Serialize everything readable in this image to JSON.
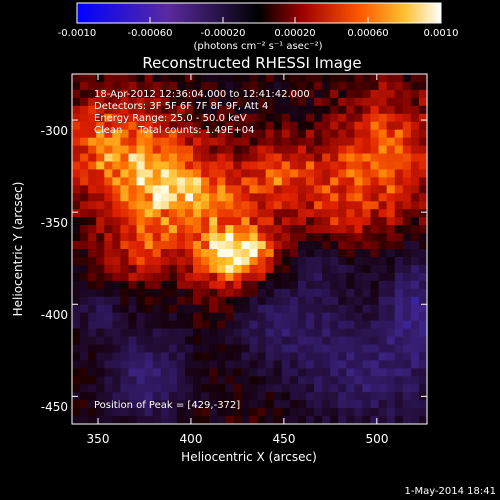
{
  "colorbar": {
    "tick_labels": [
      "-0.0010",
      "-0.00060",
      "-0.00020",
      "0.00020",
      "0.00060",
      "0.0010"
    ],
    "unit_label": "(photons cm⁻² s⁻¹ asec⁻²)",
    "range": [
      -0.001,
      0.001
    ]
  },
  "plot": {
    "title": "Reconstructed RHESSI Image",
    "xlabel": "Heliocentric X (arcsec)",
    "ylabel": "Heliocentric Y (arcsec)",
    "x_ticks": [
      "350",
      "400",
      "450",
      "500"
    ],
    "y_ticks": [
      "-300",
      "-350",
      "-400",
      "-450"
    ],
    "xlim": [
      336,
      527
    ],
    "ylim": [
      -465,
      -275
    ]
  },
  "annotations": {
    "line1": "18-Apr-2012 12:36:04.000 to 12:41:42.000",
    "line2": "Detectors: 3F 5F 6F 7F 8F 9F, Att 4",
    "line3": "Energy Range: 25.0 - 50.0 keV",
    "line4": "Clean     Total counts: 1.49E+04",
    "peak": "Position of Peak = [429,-372]"
  },
  "footer": {
    "timestamp": "1-May-2014 18:41"
  },
  "colors": {
    "background": "#000000",
    "text": "#ffffff",
    "negative": "#3a1f8a",
    "positive_low": "#8a0000",
    "positive_mid": "#ff5a00",
    "positive_high": "#ffffe6"
  },
  "chart_data": {
    "type": "heatmap",
    "title": "Reconstructed RHESSI Image",
    "xlabel": "Heliocentric X (arcsec)",
    "ylabel": "Heliocentric Y (arcsec)",
    "xlim": [
      336,
      527
    ],
    "ylim": [
      -465,
      -275
    ],
    "x_ticks": [
      350,
      400,
      450,
      500
    ],
    "y_ticks": [
      -300,
      -350,
      -400,
      -450
    ],
    "peak": [
      429,
      -372
    ],
    "blobs": [
      {
        "x": 425,
        "y": -372,
        "sx": 16,
        "sy": 12,
        "v": 0.001
      },
      {
        "x": 395,
        "y": -340,
        "sx": 22,
        "sy": 16,
        "v": 0.00072
      },
      {
        "x": 360,
        "y": -315,
        "sx": 25,
        "sy": 20,
        "v": 0.00065
      },
      {
        "x": 450,
        "y": -330,
        "sx": 18,
        "sy": 14,
        "v": 0.00055
      },
      {
        "x": 505,
        "y": -320,
        "sx": 20,
        "sy": 26,
        "v": 0.0006
      },
      {
        "x": 372,
        "y": -370,
        "sx": 16,
        "sy": 14,
        "v": 0.0004
      },
      {
        "x": 480,
        "y": -350,
        "sx": 12,
        "sy": 12,
        "v": 0.0003
      },
      {
        "x": 415,
        "y": -405,
        "sx": 12,
        "sy": 16,
        "v": 0.00028
      },
      {
        "x": 375,
        "y": -440,
        "sx": 16,
        "sy": 18,
        "v": -0.00055
      },
      {
        "x": 350,
        "y": -405,
        "sx": 10,
        "sy": 10,
        "v": -0.00035
      },
      {
        "x": 445,
        "y": -410,
        "sx": 30,
        "sy": 16,
        "v": -0.00045
      },
      {
        "x": 495,
        "y": -440,
        "sx": 28,
        "sy": 20,
        "v": -0.0005
      },
      {
        "x": 520,
        "y": -400,
        "sx": 12,
        "sy": 20,
        "v": -0.0006
      },
      {
        "x": 470,
        "y": -380,
        "sx": 12,
        "sy": 10,
        "v": -0.0003
      }
    ]
  }
}
